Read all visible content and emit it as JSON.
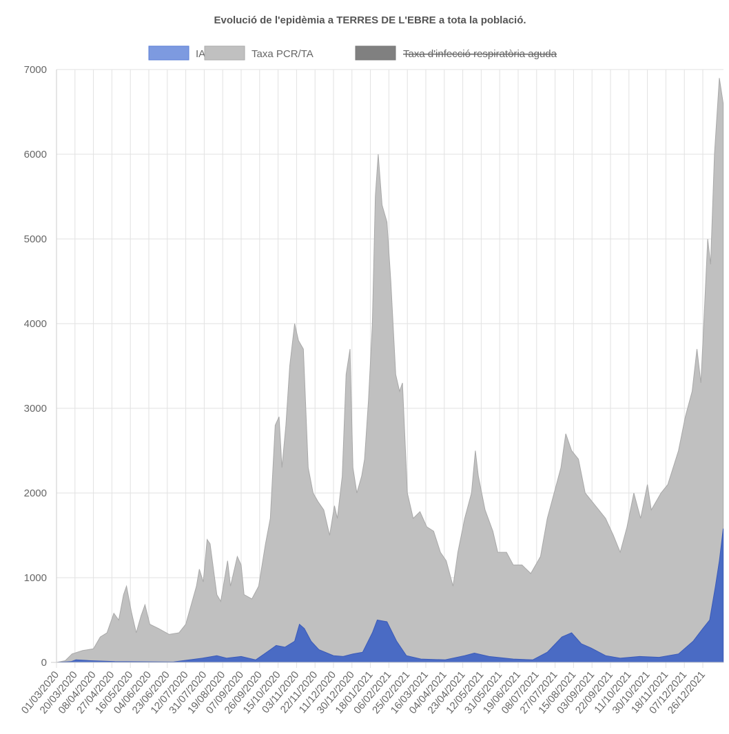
{
  "chart_data": {
    "type": "area",
    "title": "Evolució de l'epidèmia a TERRES DE L'EBRE a tota la població.",
    "legend": [
      {
        "label": "IA7",
        "color": "#7d9ae0",
        "hidden": false
      },
      {
        "label": "Taxa PCR/TA",
        "color": "#c0c0c0",
        "hidden": false
      },
      {
        "label": "Taxa d'infecció respiratòria aguda",
        "color": "#808080",
        "hidden": true
      }
    ],
    "legend_position": "top",
    "ylim": [
      0,
      7000
    ],
    "yticks": [
      0,
      1000,
      2000,
      3000,
      4000,
      5000,
      6000,
      7000
    ],
    "x_unit": "days since 01/03/2020",
    "xlim": [
      0,
      686
    ],
    "xtick_step_days": 19,
    "xticks": [
      "01/03/2020",
      "20/03/2020",
      "08/04/2020",
      "27/04/2020",
      "16/05/2020",
      "04/06/2020",
      "23/06/2020",
      "12/07/2020",
      "31/07/2020",
      "19/08/2020",
      "07/09/2020",
      "26/09/2020",
      "15/10/2020",
      "03/11/2020",
      "22/11/2020",
      "11/12/2020",
      "30/12/2020",
      "18/01/2021",
      "06/02/2021",
      "25/02/2021",
      "16/03/2021",
      "04/04/2021",
      "23/04/2021",
      "12/05/2021",
      "31/05/2021",
      "19/06/2021",
      "08/07/2021",
      "27/07/2021",
      "15/08/2021",
      "03/09/2021",
      "22/09/2021",
      "11/10/2021",
      "30/10/2021",
      "18/11/2021",
      "07/12/2021",
      "26/12/2021"
    ],
    "series": [
      {
        "name": "Taxa PCR/TA",
        "color": "#c0c0c0",
        "line": "#a8a8a8",
        "points": [
          [
            0,
            0
          ],
          [
            9,
            20
          ],
          [
            16,
            100
          ],
          [
            27,
            140
          ],
          [
            38,
            160
          ],
          [
            45,
            300
          ],
          [
            52,
            350
          ],
          [
            59,
            580
          ],
          [
            64,
            500
          ],
          [
            69,
            800
          ],
          [
            72,
            900
          ],
          [
            77,
            600
          ],
          [
            82,
            350
          ],
          [
            87,
            550
          ],
          [
            91,
            680
          ],
          [
            96,
            450
          ],
          [
            105,
            400
          ],
          [
            116,
            330
          ],
          [
            126,
            350
          ],
          [
            133,
            450
          ],
          [
            144,
            900
          ],
          [
            147,
            1100
          ],
          [
            151,
            950
          ],
          [
            155,
            1450
          ],
          [
            158,
            1400
          ],
          [
            165,
            800
          ],
          [
            169,
            720
          ],
          [
            176,
            1200
          ],
          [
            179,
            900
          ],
          [
            186,
            1250
          ],
          [
            190,
            1150
          ],
          [
            193,
            800
          ],
          [
            201,
            750
          ],
          [
            208,
            900
          ],
          [
            215,
            1400
          ],
          [
            220,
            1700
          ],
          [
            225,
            2800
          ],
          [
            229,
            2900
          ],
          [
            232,
            2300
          ],
          [
            236,
            2800
          ],
          [
            240,
            3500
          ],
          [
            245,
            4000
          ],
          [
            249,
            3800
          ],
          [
            254,
            3700
          ],
          [
            259,
            2300
          ],
          [
            264,
            2000
          ],
          [
            269,
            1900
          ],
          [
            275,
            1800
          ],
          [
            281,
            1500
          ],
          [
            286,
            1850
          ],
          [
            289,
            1700
          ],
          [
            294,
            2200
          ],
          [
            298,
            3400
          ],
          [
            302,
            3700
          ],
          [
            305,
            2300
          ],
          [
            309,
            2000
          ],
          [
            314,
            2200
          ],
          [
            317,
            2400
          ],
          [
            321,
            3100
          ],
          [
            325,
            4000
          ],
          [
            328,
            5500
          ],
          [
            331,
            6000
          ],
          [
            335,
            5400
          ],
          [
            340,
            5200
          ],
          [
            344,
            4500
          ],
          [
            349,
            3400
          ],
          [
            353,
            3200
          ],
          [
            356,
            3300
          ],
          [
            361,
            2000
          ],
          [
            367,
            1700
          ],
          [
            374,
            1780
          ],
          [
            381,
            1600
          ],
          [
            388,
            1550
          ],
          [
            395,
            1300
          ],
          [
            401,
            1200
          ],
          [
            408,
            900
          ],
          [
            413,
            1300
          ],
          [
            420,
            1700
          ],
          [
            427,
            2000
          ],
          [
            431,
            2500
          ],
          [
            434,
            2200
          ],
          [
            441,
            1800
          ],
          [
            449,
            1550
          ],
          [
            454,
            1300
          ],
          [
            463,
            1300
          ],
          [
            470,
            1150
          ],
          [
            479,
            1150
          ],
          [
            488,
            1050
          ],
          [
            498,
            1250
          ],
          [
            505,
            1700
          ],
          [
            512,
            2000
          ],
          [
            519,
            2300
          ],
          [
            524,
            2700
          ],
          [
            530,
            2500
          ],
          [
            537,
            2400
          ],
          [
            544,
            2000
          ],
          [
            551,
            1900
          ],
          [
            558,
            1800
          ],
          [
            565,
            1700
          ],
          [
            573,
            1500
          ],
          [
            580,
            1300
          ],
          [
            587,
            1600
          ],
          [
            594,
            2000
          ],
          [
            601,
            1700
          ],
          [
            608,
            2100
          ],
          [
            612,
            1800
          ],
          [
            622,
            2000
          ],
          [
            629,
            2100
          ],
          [
            640,
            2500
          ],
          [
            647,
            2900
          ],
          [
            654,
            3200
          ],
          [
            659,
            3700
          ],
          [
            663,
            3300
          ],
          [
            666,
            4000
          ],
          [
            670,
            5000
          ],
          [
            673,
            4700
          ],
          [
            677,
            6000
          ],
          [
            682,
            6900
          ],
          [
            686,
            6600
          ]
        ]
      },
      {
        "name": "IA7",
        "color": "#4a6bc4",
        "line": "#3a5ab8",
        "points": [
          [
            0,
            0
          ],
          [
            15,
            10
          ],
          [
            20,
            30
          ],
          [
            35,
            20
          ],
          [
            60,
            10
          ],
          [
            120,
            5
          ],
          [
            150,
            50
          ],
          [
            165,
            80
          ],
          [
            175,
            50
          ],
          [
            190,
            70
          ],
          [
            205,
            30
          ],
          [
            220,
            150
          ],
          [
            226,
            200
          ],
          [
            235,
            180
          ],
          [
            245,
            250
          ],
          [
            250,
            450
          ],
          [
            255,
            400
          ],
          [
            262,
            250
          ],
          [
            270,
            150
          ],
          [
            285,
            80
          ],
          [
            295,
            70
          ],
          [
            305,
            100
          ],
          [
            315,
            120
          ],
          [
            325,
            350
          ],
          [
            330,
            500
          ],
          [
            340,
            480
          ],
          [
            350,
            250
          ],
          [
            360,
            80
          ],
          [
            375,
            40
          ],
          [
            400,
            30
          ],
          [
            420,
            80
          ],
          [
            430,
            110
          ],
          [
            445,
            70
          ],
          [
            470,
            40
          ],
          [
            490,
            30
          ],
          [
            505,
            120
          ],
          [
            520,
            300
          ],
          [
            530,
            350
          ],
          [
            540,
            220
          ],
          [
            550,
            170
          ],
          [
            565,
            80
          ],
          [
            580,
            50
          ],
          [
            600,
            70
          ],
          [
            620,
            60
          ],
          [
            640,
            100
          ],
          [
            655,
            250
          ],
          [
            665,
            400
          ],
          [
            672,
            500
          ],
          [
            678,
            900
          ],
          [
            682,
            1200
          ],
          [
            686,
            1580
          ]
        ]
      }
    ]
  }
}
